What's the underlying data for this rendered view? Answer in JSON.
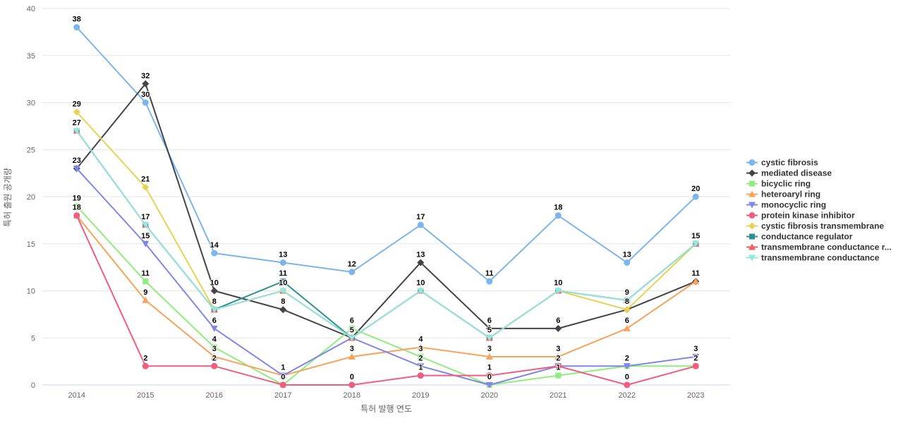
{
  "chart_data": {
    "type": "line",
    "title": "",
    "xlabel": "특허 발행 연도",
    "ylabel": "특허 출원 공개량",
    "categories": [
      "2014",
      "2015",
      "2016",
      "2017",
      "2018",
      "2019",
      "2020",
      "2021",
      "2022",
      "2023"
    ],
    "y_ticks": [
      0,
      5,
      10,
      15,
      20,
      25,
      30,
      35,
      40
    ],
    "ylim": [
      0,
      40
    ],
    "grid": true,
    "legend_position": "right",
    "data_labels_visible": true,
    "colors": {
      "gridline": "#e6e6e6",
      "axis_line": "#ccd6eb",
      "tick_text": "#666666",
      "legend_text": "#333333",
      "data_label_text": "#000000",
      "background": "#ffffff"
    },
    "series": [
      {
        "name": "cystic fibrosis",
        "color": "#7cb5ec",
        "marker": "circle",
        "values": [
          38,
          30,
          14,
          13,
          12,
          17,
          11,
          18,
          13,
          20
        ]
      },
      {
        "name": "mediated disease",
        "color": "#434348",
        "marker": "diamond",
        "values": [
          23,
          32,
          10,
          8,
          5,
          13,
          6,
          6,
          8,
          11
        ]
      },
      {
        "name": "bicyclic ring",
        "color": "#90ed7d",
        "marker": "square",
        "values": [
          19,
          11,
          4,
          0,
          6,
          3,
          0,
          1,
          2,
          2
        ]
      },
      {
        "name": "heteroaryl ring",
        "color": "#f7a35c",
        "marker": "triangle",
        "values": [
          18,
          9,
          3,
          1,
          3,
          4,
          3,
          3,
          6,
          11
        ]
      },
      {
        "name": "monocyclic ring",
        "color": "#8085e9",
        "marker": "triangle-down",
        "values": [
          23,
          15,
          6,
          1,
          5,
          2,
          0,
          2,
          2,
          3
        ]
      },
      {
        "name": "protein kinase inhibitor",
        "color": "#f15c80",
        "marker": "circle",
        "values": [
          18,
          2,
          2,
          0,
          0,
          1,
          1,
          2,
          0,
          2
        ]
      },
      {
        "name": "cystic fibrosis transmembrane",
        "color": "#e4d354",
        "marker": "diamond",
        "values": [
          29,
          21,
          8,
          10,
          5,
          10,
          5,
          10,
          8,
          15
        ]
      },
      {
        "name": "conductance regulator",
        "color": "#2b908f",
        "marker": "square",
        "values": [
          27,
          17,
          8,
          11,
          5,
          10,
          5,
          10,
          9,
          15
        ]
      },
      {
        "name": "transmembrane conductance r...",
        "color": "#f45b5b",
        "marker": "triangle",
        "values": [
          27,
          17,
          8,
          10,
          5,
          10,
          5,
          10,
          9,
          15
        ]
      },
      {
        "name": "transmembrane conductance",
        "color": "#91e8e1",
        "marker": "triangle-down",
        "values": [
          27,
          17,
          8,
          10,
          5,
          10,
          5,
          10,
          9,
          15
        ]
      }
    ]
  }
}
